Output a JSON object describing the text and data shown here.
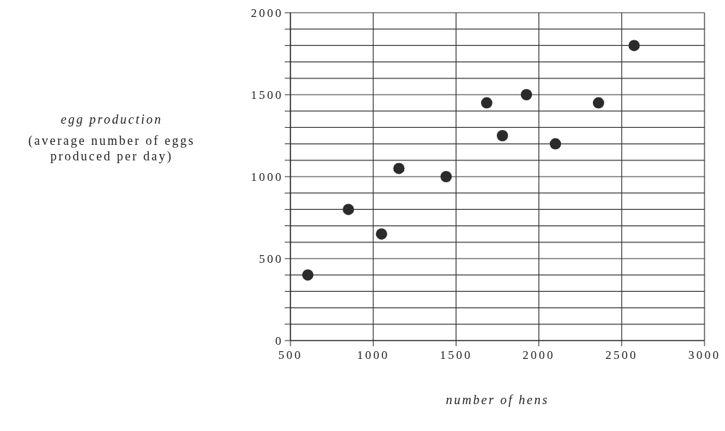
{
  "chart_data": {
    "type": "scatter",
    "xlabel": "number of hens",
    "ylabel": "egg production\n(average number of eggs\nproduced per day)",
    "series": [
      {
        "color": "#2b2b2b",
        "x": [
          605,
          850,
          1050,
          1155,
          1440,
          1685,
          1780,
          1925,
          2100,
          2360,
          2575
        ],
        "values": [
          400,
          800,
          650,
          1050,
          1000,
          1450,
          1250,
          1500,
          1200,
          1450,
          1800
        ]
      }
    ],
    "xlim": [
      500,
      3000
    ],
    "xticks": [
      500,
      1000,
      1500,
      2000,
      2500,
      3000
    ],
    "ylim": [
      0,
      2000
    ],
    "yticks": [
      0,
      {
        "value": 100,
        "label": null
      },
      {
        "value": 200,
        "label": null
      },
      {
        "value": 300,
        "label": null
      },
      {
        "value": 400,
        "label": null
      },
      500,
      {
        "value": 600,
        "label": null
      },
      {
        "value": 700,
        "label": null
      },
      {
        "value": 800,
        "label": null
      },
      {
        "value": 900,
        "label": null
      },
      1000,
      {
        "value": 1100,
        "label": null
      },
      {
        "value": 1200,
        "label": null
      },
      {
        "value": 1300,
        "label": null
      },
      {
        "value": 1400,
        "label": null
      },
      1500,
      {
        "value": 1600,
        "label": null
      },
      {
        "value": 1700,
        "label": null
      },
      {
        "value": 1800,
        "label": null
      },
      {
        "value": 1900,
        "label": null
      },
      2000
    ],
    "grid": true,
    "marker": "circle"
  }
}
